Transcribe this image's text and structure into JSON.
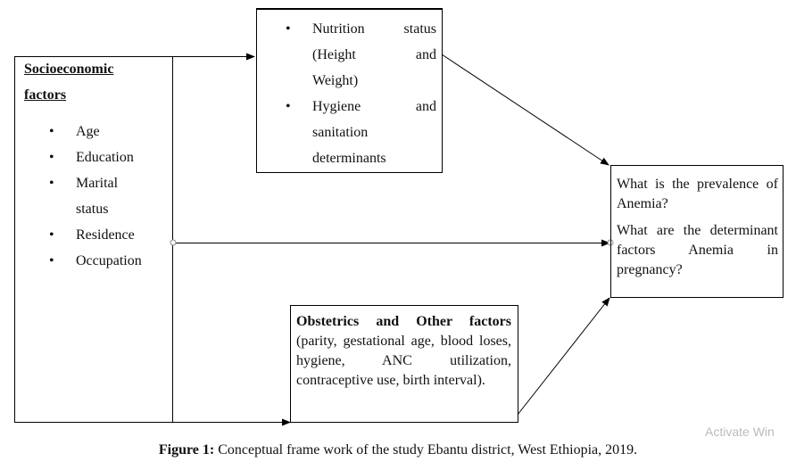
{
  "socioeconomic": {
    "title_line1": "Socioeconomic",
    "title_line2": "factors",
    "items": [
      "Age",
      "Education",
      "Marital",
      "status",
      "Residence",
      "Occupation"
    ]
  },
  "nutrition_box": {
    "items": [
      {
        "lines": [
          "Nutrition status",
          "(Height and",
          "Weight)"
        ]
      },
      {
        "lines": [
          "Hygiene and",
          "sanitation",
          "determinants"
        ]
      }
    ]
  },
  "outcome_box": {
    "q1": "What is the prevalence of Anemia?",
    "q2": "What are the determinant factors Anemia in pregnancy?"
  },
  "obstetrics_box": {
    "title": "Obstetrics and Other factors",
    "body": "(parity, gestational age, blood loses, hygiene, ANC utilization, contraceptive use, birth interval)."
  },
  "caption": {
    "label": "Figure 1:",
    "text": " Conceptual frame work of the study Ebantu district, West Ethiopia, 2019."
  },
  "watermark": "Activate Win",
  "bullet_icon": "•"
}
